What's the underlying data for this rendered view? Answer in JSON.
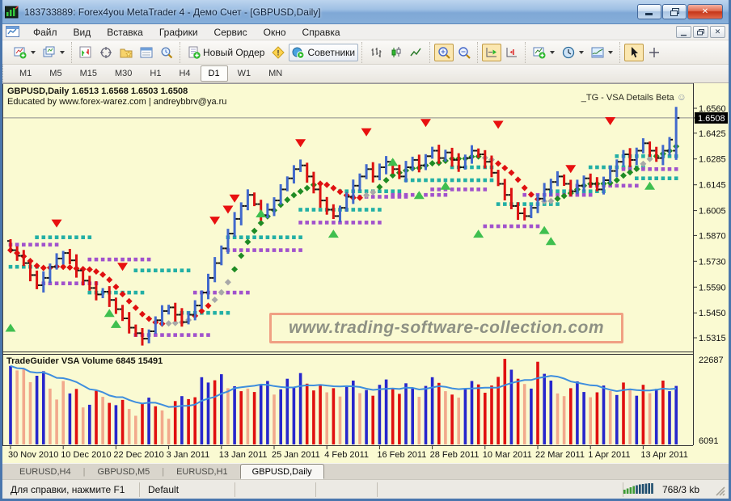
{
  "window": {
    "title": "183733889: Forex4you MetaTrader 4 - Демо Счет - [GBPUSD,Daily]",
    "controls": {
      "minimize": "–",
      "restore": "❐",
      "close": "✕"
    }
  },
  "menu": {
    "items": [
      "Файл",
      "Вид",
      "Вставка",
      "Графики",
      "Сервис",
      "Окно",
      "Справка"
    ],
    "names": [
      "file",
      "view",
      "insert",
      "charts",
      "tools",
      "window",
      "help"
    ]
  },
  "toolbar": {
    "groups": [
      [
        {
          "name": "new-chart",
          "dropdown": true
        },
        {
          "name": "profiles",
          "dropdown": true
        }
      ],
      [
        {
          "name": "market-watch"
        },
        {
          "name": "data-window"
        },
        {
          "name": "navigator"
        },
        {
          "name": "terminal"
        },
        {
          "name": "strategy-tester"
        }
      ],
      [
        {
          "name": "new-order",
          "label": "Новый Ордер"
        },
        {
          "name": "metaeditor-warning"
        },
        {
          "name": "experts",
          "label": "Советники",
          "framed": true
        }
      ],
      [
        {
          "name": "bar-chart"
        },
        {
          "name": "candlestick-chart"
        },
        {
          "name": "line-chart"
        }
      ],
      [
        {
          "name": "zoom-in",
          "pressed": true
        },
        {
          "name": "zoom-out"
        }
      ],
      [
        {
          "name": "auto-scroll",
          "pressed": true
        },
        {
          "name": "chart-shift"
        }
      ],
      [
        {
          "name": "indicators",
          "dropdown": true
        },
        {
          "name": "periods",
          "dropdown": true
        },
        {
          "name": "templates",
          "dropdown": true
        }
      ],
      [
        {
          "name": "cursor",
          "pressed": true
        },
        {
          "name": "crosshair"
        }
      ]
    ]
  },
  "timeframes": {
    "items": [
      "M1",
      "M5",
      "M15",
      "M30",
      "H1",
      "H4",
      "D1",
      "W1",
      "MN"
    ],
    "active_index": 6
  },
  "chart": {
    "symbol_line": "GBPUSD,Daily  1.6513 1.6568 1.6503 1.6508",
    "educated_line": "Educated by www.forex-warez.com | andreybbrv@ya.ru",
    "indicator_label": "_TG - VSA Details Beta",
    "smiley": "☺",
    "watermark": "www.trading-software-collection.com",
    "volume_header": "TradeGuider VSA Volume 6845 15491",
    "current_price": "1.6508",
    "price_ticks": [
      "1.6560",
      "1.6508",
      "1.6425",
      "1.6285",
      "1.6145",
      "1.6005",
      "1.5870",
      "1.5730",
      "1.5590",
      "1.5450",
      "1.5315"
    ],
    "volume_axis": {
      "max": "22687",
      "min": "6091"
    },
    "date_ticks": [
      "30 Nov 2010",
      "10 Dec 2010",
      "22 Dec 2010",
      "3 Jan 2011",
      "13 Jan 2011",
      "25 Jan 2011",
      "4 Feb 2011",
      "16 Feb 2011",
      "28 Feb 2011",
      "10 Mar 2011",
      "22 Mar 2011",
      "1 Apr 2011",
      "13 Apr 2011"
    ]
  },
  "chart_data": {
    "type": "bar",
    "title": "GBPUSD,Daily",
    "price_range": {
      "max": 1.656,
      "min": 1.5315
    },
    "current_price": 1.6508,
    "last_bar": {
      "o": 1.6513,
      "h": 1.6568,
      "l": 1.6503,
      "c": 1.6508
    },
    "closes": [
      1.579,
      1.576,
      1.572,
      1.5655,
      1.56,
      1.564,
      1.57,
      1.5745,
      1.5775,
      1.5735,
      1.568,
      1.5625,
      1.5585,
      1.555,
      1.5565,
      1.552,
      1.547,
      1.542,
      1.537,
      1.534,
      1.531,
      1.535,
      1.541,
      1.546,
      1.548,
      1.544,
      1.54,
      1.544,
      1.549,
      1.556,
      1.564,
      1.572,
      1.58,
      1.588,
      1.596,
      1.603,
      1.609,
      1.604,
      1.598,
      1.601,
      1.606,
      1.612,
      1.618,
      1.623,
      1.625,
      1.619,
      1.612,
      1.606,
      1.601,
      1.5975,
      1.602,
      1.608,
      1.614,
      1.619,
      1.623,
      1.619,
      1.624,
      1.627,
      1.623,
      1.619,
      1.624,
      1.628,
      1.625,
      1.63,
      1.633,
      1.629,
      1.632,
      1.628,
      1.624,
      1.629,
      1.633,
      1.631,
      1.627,
      1.621,
      1.615,
      1.609,
      1.603,
      1.599,
      1.5975,
      1.602,
      1.607,
      1.612,
      1.616,
      1.619,
      1.615,
      1.611,
      1.614,
      1.618,
      1.615,
      1.612,
      1.617,
      1.622,
      1.627,
      1.631,
      1.628,
      1.633,
      1.637,
      1.633,
      1.629,
      1.633,
      1.639,
      1.6508
    ],
    "trend_segments": [
      {
        "from": 0,
        "to": 23,
        "dir": "down"
      },
      {
        "from": 24,
        "to": 27,
        "dir": "flat"
      },
      {
        "from": 28,
        "to": 30,
        "dir": "down"
      },
      {
        "from": 31,
        "to": 33,
        "dir": "flat"
      },
      {
        "from": 34,
        "to": 46,
        "dir": "up"
      },
      {
        "from": 47,
        "to": 53,
        "dir": "down"
      },
      {
        "from": 54,
        "to": 55,
        "dir": "flat"
      },
      {
        "from": 56,
        "to": 71,
        "dir": "up"
      },
      {
        "from": 72,
        "to": 73,
        "dir": "flat"
      },
      {
        "from": 74,
        "to": 80,
        "dir": "down"
      },
      {
        "from": 81,
        "to": 82,
        "dir": "flat"
      },
      {
        "from": 83,
        "to": 95,
        "dir": "up"
      },
      {
        "from": 96,
        "to": 97,
        "dir": "flat"
      },
      {
        "from": 98,
        "to": 101,
        "dir": "up"
      }
    ],
    "teal_runs": [
      [
        0,
        4,
        1.57
      ],
      [
        4,
        12,
        1.586
      ],
      [
        12,
        20,
        1.556
      ],
      [
        19,
        27,
        1.568
      ],
      [
        26,
        33,
        1.545
      ],
      [
        33,
        44,
        1.586
      ],
      [
        44,
        56,
        1.601
      ],
      [
        50,
        56,
        1.611
      ],
      [
        57,
        59,
        1.611
      ],
      [
        60,
        73,
        1.617
      ],
      [
        67,
        73,
        1.624
      ],
      [
        74,
        83,
        1.604
      ],
      [
        82,
        90,
        1.611
      ],
      [
        88,
        96,
        1.624
      ],
      [
        92,
        101,
        1.63
      ],
      [
        95,
        101,
        1.618
      ]
    ],
    "purple_runs": [
      [
        0,
        7,
        1.582
      ],
      [
        5,
        13,
        1.561
      ],
      [
        12,
        21,
        1.574
      ],
      [
        19,
        30,
        1.533
      ],
      [
        28,
        36,
        1.556
      ],
      [
        33,
        44,
        1.579
      ],
      [
        44,
        56,
        1.594
      ],
      [
        52,
        60,
        1.608
      ],
      [
        58,
        66,
        1.609
      ],
      [
        64,
        72,
        1.612
      ],
      [
        72,
        80,
        1.592
      ],
      [
        78,
        88,
        1.609
      ],
      [
        86,
        95,
        1.614
      ],
      [
        93,
        101,
        1.623
      ]
    ],
    "sell_markers": [
      [
        7,
        1.5935
      ],
      [
        17,
        1.57
      ],
      [
        31,
        1.595
      ],
      [
        33,
        1.601
      ],
      [
        34,
        1.607
      ],
      [
        44,
        1.637
      ],
      [
        54,
        1.643
      ],
      [
        63,
        1.648
      ],
      [
        74,
        1.647
      ],
      [
        85,
        1.623
      ],
      [
        91,
        1.649
      ]
    ],
    "buy_markers": [
      [
        0,
        1.537
      ],
      [
        15,
        1.545
      ],
      [
        16,
        1.539
      ],
      [
        38,
        1.599
      ],
      [
        49,
        1.588
      ],
      [
        58,
        1.627
      ],
      [
        62,
        1.609
      ],
      [
        66,
        1.614
      ],
      [
        71,
        1.588
      ],
      [
        81,
        1.59
      ],
      [
        82,
        1.584
      ],
      [
        97,
        1.614
      ]
    ],
    "volume": {
      "max": 22687,
      "bars": [
        [
          20800,
          "b"
        ],
        [
          19600,
          "s"
        ],
        [
          19900,
          "s"
        ],
        [
          16500,
          "s"
        ],
        [
          18200,
          "b"
        ],
        [
          19400,
          "b"
        ],
        [
          14800,
          "s"
        ],
        [
          11900,
          "s"
        ],
        [
          16800,
          "s"
        ],
        [
          13500,
          "b"
        ],
        [
          14700,
          "r"
        ],
        [
          9800,
          "s"
        ],
        [
          10500,
          "b"
        ],
        [
          14200,
          "r"
        ],
        [
          12600,
          "s"
        ],
        [
          11000,
          "r"
        ],
        [
          10400,
          "b"
        ],
        [
          11800,
          "r"
        ],
        [
          9400,
          "s"
        ],
        [
          7600,
          "s"
        ],
        [
          10900,
          "r"
        ],
        [
          12400,
          "b"
        ],
        [
          10100,
          "r"
        ],
        [
          9000,
          "s"
        ],
        [
          6800,
          "s"
        ],
        [
          11500,
          "r"
        ],
        [
          12800,
          "b"
        ],
        [
          12000,
          "r"
        ],
        [
          12500,
          "r"
        ],
        [
          17800,
          "b"
        ],
        [
          16400,
          "b"
        ],
        [
          17000,
          "r"
        ],
        [
          18600,
          "b"
        ],
        [
          14900,
          "s"
        ],
        [
          15400,
          "b"
        ],
        [
          14100,
          "r"
        ],
        [
          14800,
          "s"
        ],
        [
          13900,
          "r"
        ],
        [
          15800,
          "b"
        ],
        [
          16800,
          "b"
        ],
        [
          13200,
          "s"
        ],
        [
          14600,
          "b"
        ],
        [
          17400,
          "b"
        ],
        [
          15200,
          "b"
        ],
        [
          18900,
          "b"
        ],
        [
          16100,
          "r"
        ],
        [
          14300,
          "r"
        ],
        [
          15700,
          "r"
        ],
        [
          13800,
          "s"
        ],
        [
          14900,
          "r"
        ],
        [
          12700,
          "s"
        ],
        [
          15300,
          "b"
        ],
        [
          16900,
          "b"
        ],
        [
          13600,
          "s"
        ],
        [
          14400,
          "b"
        ],
        [
          12900,
          "r"
        ],
        [
          15800,
          "b"
        ],
        [
          17200,
          "b"
        ],
        [
          14700,
          "r"
        ],
        [
          13400,
          "r"
        ],
        [
          16200,
          "b"
        ],
        [
          14800,
          "b"
        ],
        [
          12600,
          "s"
        ],
        [
          15500,
          "b"
        ],
        [
          17800,
          "b"
        ],
        [
          16300,
          "r"
        ],
        [
          14100,
          "s"
        ],
        [
          13200,
          "r"
        ],
        [
          12400,
          "s"
        ],
        [
          14700,
          "b"
        ],
        [
          16800,
          "b"
        ],
        [
          15900,
          "r"
        ],
        [
          13700,
          "r"
        ],
        [
          15600,
          "r"
        ],
        [
          17900,
          "r"
        ],
        [
          22687,
          "r"
        ],
        [
          19800,
          "b"
        ],
        [
          17400,
          "r"
        ],
        [
          16000,
          "s"
        ],
        [
          14800,
          "b"
        ],
        [
          21900,
          "r"
        ],
        [
          18700,
          "b"
        ],
        [
          16900,
          "b"
        ],
        [
          13500,
          "s"
        ],
        [
          12800,
          "s"
        ],
        [
          14900,
          "r"
        ],
        [
          16700,
          "b"
        ],
        [
          13900,
          "b"
        ],
        [
          12500,
          "s"
        ],
        [
          13800,
          "r"
        ],
        [
          15600,
          "b"
        ],
        [
          14200,
          "s"
        ],
        [
          13100,
          "b"
        ],
        [
          16400,
          "r"
        ],
        [
          14800,
          "s"
        ],
        [
          12900,
          "b"
        ],
        [
          15800,
          "r"
        ],
        [
          13600,
          "s"
        ],
        [
          14700,
          "b"
        ],
        [
          16900,
          "r"
        ],
        [
          14100,
          "b"
        ],
        [
          15491,
          "b"
        ]
      ]
    }
  },
  "tabs": {
    "items": [
      "EURUSD,H4",
      "GBPUSD,M5",
      "EURUSD,H1",
      "GBPUSD,Daily"
    ],
    "active_index": 3
  },
  "status": {
    "cells": [
      "Для справки, нажмите F1",
      "Default",
      "",
      "",
      ""
    ],
    "traffic": "768/3 kb"
  },
  "colors": {
    "chart_bg": "#FAFAD2",
    "bar_up": "#4169CD",
    "bar_down": "#DD1111",
    "trend_up": "#1F8B24",
    "trend_down": "#E01010",
    "trend_flat": "#A8A8A8",
    "level_teal": "#22AFA5",
    "level_purple": "#A152CC",
    "signal_sell": "#E81010",
    "signal_buy": "#3FBF4F",
    "vol_up": "#2727CC",
    "vol_down": "#E01010",
    "vol_neutral": "#F2A98C",
    "vol_ma": "#3E8EDE",
    "watermark_border": "#F0A083",
    "price_line": "#8C8C8C"
  }
}
